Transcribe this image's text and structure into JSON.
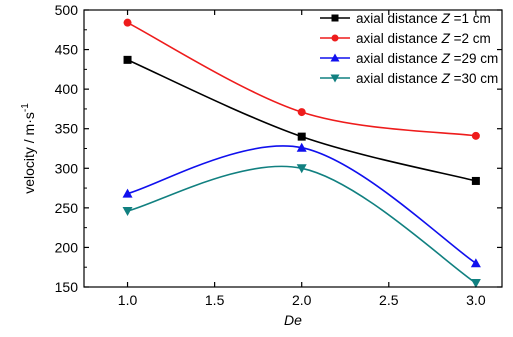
{
  "chart_data": {
    "type": "line",
    "xlabel": "De",
    "ylabel_main": "velocity / m",
    "ylabel_dot": "·",
    "ylabel_unit": "s",
    "ylabel_exp": "-1",
    "xlim": [
      0.75,
      3.15
    ],
    "ylim": [
      150,
      500
    ],
    "x_ticks": [
      1.0,
      1.5,
      2.0,
      2.5,
      3.0
    ],
    "x_tick_labels": [
      "1.0",
      "1.5",
      "2.0",
      "2.5",
      "3.0"
    ],
    "y_ticks": [
      150,
      200,
      250,
      300,
      350,
      400,
      450,
      500
    ],
    "y_tick_labels": [
      "150",
      "200",
      "250",
      "300",
      "350",
      "400",
      "450",
      "500"
    ],
    "legend_position": "top-right",
    "series": [
      {
        "legend_prefix": "axial distance ",
        "legend_var": "Z",
        "legend_suffix": " =1 cm",
        "color": "#000000",
        "marker": "square",
        "x": [
          1.0,
          2.0,
          3.0
        ],
        "values": [
          437,
          340,
          284
        ]
      },
      {
        "legend_prefix": "axial distance ",
        "legend_var": "Z",
        "legend_suffix": " =2 cm",
        "color": "#ee1c1c",
        "marker": "circle",
        "x": [
          1.0,
          2.0,
          3.0
        ],
        "values": [
          484,
          371,
          341
        ]
      },
      {
        "legend_prefix": "axial distance ",
        "legend_var": "Z",
        "legend_suffix": " =29 cm",
        "color": "#1010ee",
        "marker": "triangle-up",
        "x": [
          1.0,
          2.0,
          3.0
        ],
        "values": [
          268,
          326,
          180
        ]
      },
      {
        "legend_prefix": "axial distance ",
        "legend_var": "Z",
        "legend_suffix": " =30 cm",
        "color": "#118080",
        "marker": "triangle-down",
        "x": [
          1.0,
          2.0,
          3.0
        ],
        "values": [
          246,
          300,
          155
        ]
      }
    ]
  }
}
